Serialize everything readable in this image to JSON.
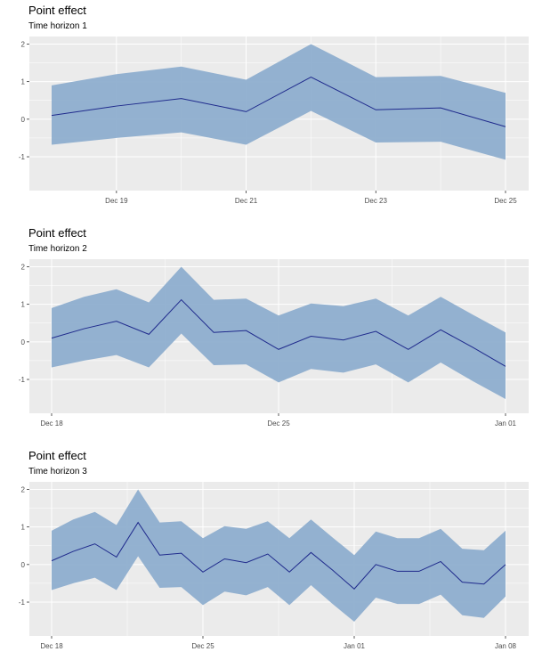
{
  "panels": [
    {
      "title": "Point effect",
      "subtitle": "Time horizon 1",
      "chart_data": {
        "type": "line",
        "xlim": [
          0,
          7
        ],
        "ylim": [
          -1.9,
          2.2
        ],
        "yticks": [
          -1,
          0,
          1,
          2
        ],
        "xticks": [
          {
            "pos": 1,
            "label": "Dec 19"
          },
          {
            "pos": 3,
            "label": "Dec 21"
          },
          {
            "pos": 5,
            "label": "Dec 23"
          },
          {
            "pos": 7,
            "label": "Dec 25"
          }
        ],
        "x": [
          0,
          1,
          2,
          3,
          4,
          5,
          6,
          7
        ],
        "mean": [
          0.1,
          0.35,
          0.55,
          0.2,
          1.12,
          0.25,
          0.3,
          -0.2
        ],
        "lower": [
          -0.68,
          -0.5,
          -0.35,
          -0.68,
          0.22,
          -0.62,
          -0.6,
          -1.08
        ],
        "upper": [
          0.9,
          1.2,
          1.4,
          1.05,
          2.0,
          1.12,
          1.15,
          0.7
        ],
        "colors": {
          "band": "#8eaecf",
          "line": "#1f2a8c",
          "panel_bg": "#ebebeb"
        }
      }
    },
    {
      "title": "Point effect",
      "subtitle": "Time horizon 2",
      "chart_data": {
        "type": "line",
        "xlim": [
          0,
          14
        ],
        "ylim": [
          -1.9,
          2.2
        ],
        "yticks": [
          -1,
          0,
          1,
          2
        ],
        "xticks": [
          {
            "pos": 0,
            "label": "Dec 18"
          },
          {
            "pos": 7,
            "label": "Dec 25"
          },
          {
            "pos": 14,
            "label": "Jan 01"
          }
        ],
        "x": [
          0,
          1,
          2,
          3,
          4,
          5,
          6,
          7,
          8,
          9,
          10,
          11,
          12,
          13,
          14
        ],
        "mean": [
          0.1,
          0.35,
          0.55,
          0.2,
          1.12,
          0.25,
          0.3,
          -0.2,
          0.15,
          0.05,
          0.28,
          -0.2,
          0.32,
          -0.15,
          -0.65
        ],
        "lower": [
          -0.68,
          -0.5,
          -0.35,
          -0.68,
          0.22,
          -0.62,
          -0.6,
          -1.08,
          -0.72,
          -0.82,
          -0.6,
          -1.08,
          -0.55,
          -1.05,
          -1.52
        ],
        "upper": [
          0.9,
          1.2,
          1.4,
          1.05,
          2.0,
          1.12,
          1.15,
          0.7,
          1.02,
          0.95,
          1.15,
          0.7,
          1.2,
          0.72,
          0.25
        ],
        "colors": {
          "band": "#8eaecf",
          "line": "#1f2a8c",
          "panel_bg": "#ebebeb"
        }
      }
    },
    {
      "title": "Point effect",
      "subtitle": "Time horizon 3",
      "chart_data": {
        "type": "line",
        "xlim": [
          0,
          21
        ],
        "ylim": [
          -1.9,
          2.2
        ],
        "yticks": [
          -1,
          0,
          1,
          2
        ],
        "xticks": [
          {
            "pos": 0,
            "label": "Dec 18"
          },
          {
            "pos": 7,
            "label": "Dec 25"
          },
          {
            "pos": 14,
            "label": "Jan 01"
          },
          {
            "pos": 21,
            "label": "Jan 08"
          }
        ],
        "x": [
          0,
          1,
          2,
          3,
          4,
          5,
          6,
          7,
          8,
          9,
          10,
          11,
          12,
          13,
          14,
          15,
          16,
          17,
          18,
          19,
          20,
          21
        ],
        "mean": [
          0.1,
          0.35,
          0.55,
          0.2,
          1.12,
          0.25,
          0.3,
          -0.2,
          0.15,
          0.05,
          0.28,
          -0.2,
          0.32,
          -0.15,
          -0.65,
          0.0,
          -0.18,
          -0.18,
          0.08,
          -0.47,
          -0.52,
          0.0
        ],
        "lower": [
          -0.68,
          -0.5,
          -0.35,
          -0.68,
          0.22,
          -0.62,
          -0.6,
          -1.08,
          -0.72,
          -0.82,
          -0.6,
          -1.08,
          -0.55,
          -1.05,
          -1.52,
          -0.88,
          -1.05,
          -1.05,
          -0.8,
          -1.35,
          -1.42,
          -0.85
        ],
        "upper": [
          0.9,
          1.2,
          1.4,
          1.05,
          2.0,
          1.12,
          1.15,
          0.7,
          1.02,
          0.95,
          1.15,
          0.7,
          1.2,
          0.72,
          0.25,
          0.88,
          0.7,
          0.7,
          0.95,
          0.42,
          0.38,
          0.9
        ],
        "colors": {
          "band": "#8eaecf",
          "line": "#1f2a8c",
          "panel_bg": "#ebebeb"
        }
      }
    }
  ]
}
